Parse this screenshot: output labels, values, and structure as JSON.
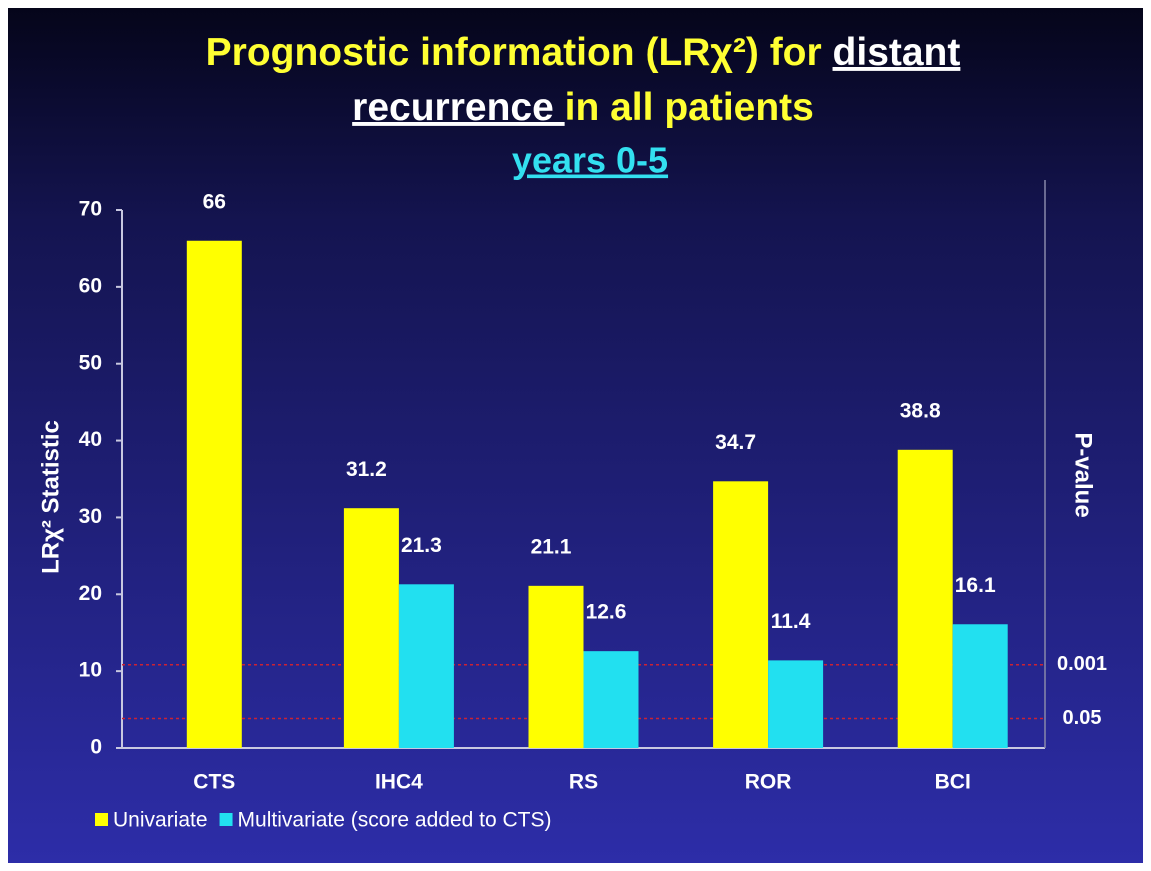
{
  "chart_data": {
    "type": "bar",
    "title": [
      [
        {
          "text": "Prognostic information (LRχ²) for ",
          "color": "#ffff33",
          "underline": false
        },
        {
          "text": "distant",
          "color": "#ffffff",
          "underline": true
        }
      ],
      [
        {
          "text": "recurrence ",
          "color": "#ffffff",
          "underline": true
        },
        {
          "text": "in all patients",
          "color": "#ffff33",
          "underline": false
        }
      ]
    ],
    "subtitle": {
      "text": "years 0-5",
      "color": "#33e0f0",
      "underline": true
    },
    "y_label": "LRχ² Statistic",
    "y2_label": "P-value",
    "categories": [
      "CTS",
      "IHC4",
      "RS",
      "ROR",
      "BCI"
    ],
    "series": [
      {
        "name": "Univariate",
        "color": "#ffff00",
        "values": [
          66,
          31.2,
          21.1,
          34.7,
          38.8
        ]
      },
      {
        "name": "Multivariate (score added to CTS)",
        "color": "#22e0f0",
        "values": [
          null,
          21.3,
          12.6,
          11.4,
          16.1
        ]
      }
    ],
    "ylim": [
      0,
      70
    ],
    "yticks": [
      0,
      10,
      20,
      30,
      40,
      50,
      60,
      70
    ],
    "reference_lines": [
      {
        "value": 10.83,
        "label": "0.001",
        "color": "#cc2233"
      },
      {
        "value": 3.84,
        "label": "0.05",
        "color": "#cc2233"
      }
    ],
    "legend": "bottom-left"
  }
}
